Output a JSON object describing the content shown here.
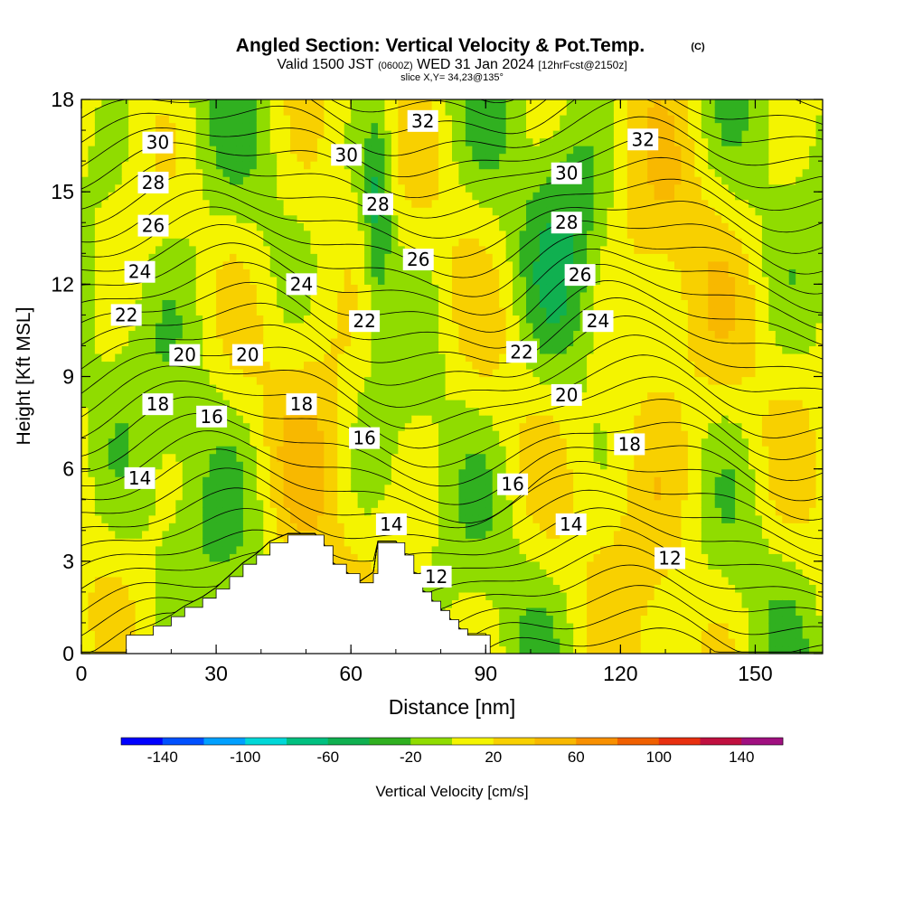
{
  "chart_data": {
    "type": "heatmap",
    "title": "Angled Section: Vertical Velocity & Pot.Temp.",
    "title_mark": "(C)",
    "subtitle": {
      "part1": "Valid 1500 JST",
      "part2": "(0600Z)",
      "part3": "WED 31 Jan 2024",
      "part4": "[12hrFcst@2150z]"
    },
    "slice_label": "slice X,Y= 34,23@135°",
    "xlabel": "Distance [nm]",
    "ylabel": "Height [Kft MSL]",
    "xlim": [
      0,
      165
    ],
    "ylim": [
      0,
      18
    ],
    "x_ticks": [
      0,
      30,
      60,
      90,
      120,
      150
    ],
    "y_ticks": [
      0,
      3,
      6,
      9,
      12,
      15,
      18
    ],
    "grid": false,
    "colorbar": {
      "label": "Vertical Velocity [cm/s]",
      "placement": "bottom",
      "tick_labels": [
        "-140",
        "-100",
        "-60",
        "-20",
        "20",
        "60",
        "100",
        "140"
      ],
      "bins": [
        -160,
        -140,
        -120,
        -100,
        -80,
        -60,
        -40,
        -20,
        0,
        20,
        40,
        60,
        80,
        100,
        120,
        140,
        160
      ],
      "colors": [
        "#0000ff",
        "#0050ff",
        "#00a0ff",
        "#00d8d8",
        "#00c080",
        "#10b050",
        "#30b020",
        "#90dc00",
        "#f4f400",
        "#f8d000",
        "#f8b800",
        "#f89000",
        "#f06000",
        "#e83010",
        "#c01040",
        "#a01080"
      ]
    },
    "vertical_velocity_features": [
      {
        "kind": "updraft_band",
        "x": [
          40,
          65
        ],
        "y": [
          0,
          18
        ],
        "max_cm_s": 25
      },
      {
        "kind": "updraft_band",
        "x": [
          110,
          145
        ],
        "y": [
          0,
          18
        ],
        "max_cm_s": 30
      },
      {
        "kind": "downdraft_core",
        "x": [
          62,
          70
        ],
        "y": [
          11,
          18
        ],
        "min_cm_s": -55
      },
      {
        "kind": "downdraft_core",
        "x": [
          96,
          120
        ],
        "y": [
          8,
          18
        ],
        "min_cm_s": -35
      }
    ],
    "terrain": [
      {
        "x": 10,
        "y": 0.6
      },
      {
        "x": 16,
        "y": 0.9
      },
      {
        "x": 20,
        "y": 1.2
      },
      {
        "x": 23,
        "y": 1.5
      },
      {
        "x": 27,
        "y": 1.8
      },
      {
        "x": 30,
        "y": 2.1
      },
      {
        "x": 33,
        "y": 2.5
      },
      {
        "x": 36,
        "y": 2.9
      },
      {
        "x": 39,
        "y": 3.2
      },
      {
        "x": 42,
        "y": 3.6
      },
      {
        "x": 46,
        "y": 3.85
      },
      {
        "x": 52,
        "y": 3.85
      },
      {
        "x": 54,
        "y": 3.5
      },
      {
        "x": 56,
        "y": 2.9
      },
      {
        "x": 59,
        "y": 2.6
      },
      {
        "x": 62,
        "y": 2.3
      },
      {
        "x": 65,
        "y": 2.6
      },
      {
        "x": 66,
        "y": 3.6
      },
      {
        "x": 70,
        "y": 3.6
      },
      {
        "x": 72,
        "y": 3.2
      },
      {
        "x": 74,
        "y": 2.6
      },
      {
        "x": 76,
        "y": 2.0
      },
      {
        "x": 78,
        "y": 1.7
      },
      {
        "x": 80,
        "y": 1.4
      },
      {
        "x": 82,
        "y": 1.1
      },
      {
        "x": 84,
        "y": 0.8
      },
      {
        "x": 86,
        "y": 0.6
      },
      {
        "x": 91,
        "y": 0.6
      }
    ],
    "series": [
      {
        "name": "12",
        "label_at": [
          {
            "x": 79,
            "y": 2.5
          },
          {
            "x": 131,
            "y": 3.1
          }
        ]
      },
      {
        "name": "14",
        "label_at": [
          {
            "x": 13,
            "y": 5.7
          },
          {
            "x": 69,
            "y": 4.2
          },
          {
            "x": 109,
            "y": 4.2
          }
        ]
      },
      {
        "name": "16",
        "label_at": [
          {
            "x": 29,
            "y": 7.7
          },
          {
            "x": 63,
            "y": 7.0
          },
          {
            "x": 96,
            "y": 5.5
          }
        ]
      },
      {
        "name": "18",
        "label_at": [
          {
            "x": 17,
            "y": 8.1
          },
          {
            "x": 49,
            "y": 8.1
          },
          {
            "x": 122,
            "y": 6.8
          }
        ]
      },
      {
        "name": "20",
        "label_at": [
          {
            "x": 23,
            "y": 9.7
          },
          {
            "x": 37,
            "y": 9.7
          },
          {
            "x": 108,
            "y": 8.4
          }
        ]
      },
      {
        "name": "22",
        "label_at": [
          {
            "x": 10,
            "y": 11.0
          },
          {
            "x": 63,
            "y": 10.8
          },
          {
            "x": 98,
            "y": 9.8
          }
        ]
      },
      {
        "name": "24",
        "label_at": [
          {
            "x": 13,
            "y": 12.4
          },
          {
            "x": 49,
            "y": 12.0
          },
          {
            "x": 115,
            "y": 10.8
          }
        ]
      },
      {
        "name": "26",
        "label_at": [
          {
            "x": 16,
            "y": 13.9
          },
          {
            "x": 75,
            "y": 12.8
          },
          {
            "x": 111,
            "y": 12.3
          }
        ]
      },
      {
        "name": "28",
        "label_at": [
          {
            "x": 16,
            "y": 15.3
          },
          {
            "x": 66,
            "y": 14.6
          },
          {
            "x": 108,
            "y": 14.0
          }
        ]
      },
      {
        "name": "30",
        "label_at": [
          {
            "x": 17,
            "y": 16.6
          },
          {
            "x": 59,
            "y": 16.2
          },
          {
            "x": 108,
            "y": 15.6
          }
        ]
      },
      {
        "name": "32",
        "label_at": [
          {
            "x": 76,
            "y": 17.3
          },
          {
            "x": 125,
            "y": 16.7
          }
        ]
      }
    ]
  }
}
